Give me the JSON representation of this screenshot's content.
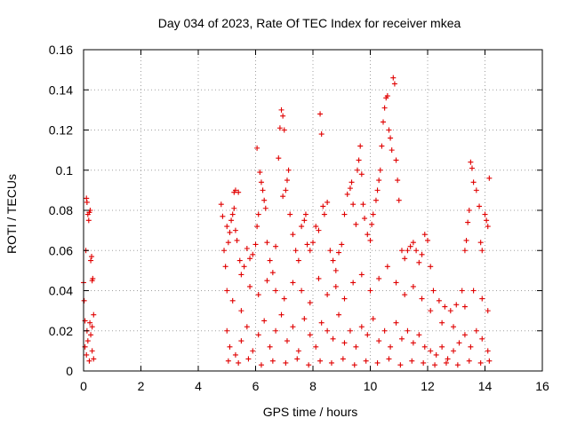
{
  "chart_data": {
    "type": "scatter",
    "title": "Day 034 of 2023, Rate Of TEC Index for receiver mkea",
    "xlabel": "GPS time / hours",
    "ylabel": "ROTI / TECUs",
    "xlim": [
      0,
      16
    ],
    "ylim": [
      0,
      0.16
    ],
    "xticks": [
      0,
      2,
      4,
      6,
      8,
      10,
      12,
      14,
      16
    ],
    "xtick_labels": [
      "0",
      "2",
      "4",
      "6",
      "8",
      "10",
      "12",
      "14",
      "16"
    ],
    "yticks": [
      0,
      0.02,
      0.04,
      0.06,
      0.08,
      0.1,
      0.12,
      0.14,
      0.16
    ],
    "ytick_labels": [
      "0",
      "0.02",
      "0.04",
      "0.06",
      "0.08",
      "0.1",
      "0.12",
      "0.14",
      "0.16"
    ],
    "grid": true,
    "marker": "plus",
    "color": "#e00000",
    "series": [
      {
        "name": "ROTI",
        "points": [
          [
            0.0,
            0.044
          ],
          [
            0.02,
            0.035
          ],
          [
            0.05,
            0.025
          ],
          [
            0.08,
            0.06
          ],
          [
            0.1,
            0.086
          ],
          [
            0.12,
            0.084
          ],
          [
            0.15,
            0.078
          ],
          [
            0.18,
            0.075
          ],
          [
            0.2,
            0.079
          ],
          [
            0.23,
            0.08
          ],
          [
            0.25,
            0.055
          ],
          [
            0.28,
            0.057
          ],
          [
            0.3,
            0.045
          ],
          [
            0.32,
            0.046
          ],
          [
            0.35,
            0.028
          ],
          [
            0.05,
            0.012
          ],
          [
            0.1,
            0.008
          ],
          [
            0.15,
            0.015
          ],
          [
            0.2,
            0.005
          ],
          [
            0.25,
            0.018
          ],
          [
            0.3,
            0.01
          ],
          [
            0.35,
            0.006
          ],
          [
            0.12,
            0.02
          ],
          [
            0.22,
            0.024
          ],
          [
            0.3,
            0.022
          ],
          [
            4.8,
            0.083
          ],
          [
            4.85,
            0.077
          ],
          [
            4.9,
            0.06
          ],
          [
            4.95,
            0.052
          ],
          [
            5.0,
            0.072
          ],
          [
            5.05,
            0.064
          ],
          [
            5.1,
            0.069
          ],
          [
            5.15,
            0.075
          ],
          [
            5.2,
            0.078
          ],
          [
            5.25,
            0.081
          ],
          [
            5.3,
            0.07
          ],
          [
            5.35,
            0.065
          ],
          [
            5.25,
            0.089
          ],
          [
            5.3,
            0.09
          ],
          [
            5.4,
            0.089
          ],
          [
            5.45,
            0.055
          ],
          [
            5.5,
            0.048
          ],
          [
            5.6,
            0.052
          ],
          [
            5.7,
            0.061
          ],
          [
            5.8,
            0.056
          ],
          [
            5.9,
            0.058
          ],
          [
            6.0,
            0.063
          ],
          [
            6.05,
            0.072
          ],
          [
            6.1,
            0.078
          ],
          [
            6.05,
            0.111
          ],
          [
            6.15,
            0.099
          ],
          [
            6.2,
            0.094
          ],
          [
            6.25,
            0.09
          ],
          [
            6.3,
            0.085
          ],
          [
            6.35,
            0.081
          ],
          [
            6.4,
            0.064
          ],
          [
            6.5,
            0.055
          ],
          [
            6.6,
            0.049
          ],
          [
            6.7,
            0.062
          ],
          [
            6.8,
            0.106
          ],
          [
            6.85,
            0.121
          ],
          [
            6.9,
            0.13
          ],
          [
            6.95,
            0.127
          ],
          [
            7.0,
            0.12
          ],
          [
            6.95,
            0.087
          ],
          [
            7.05,
            0.09
          ],
          [
            7.1,
            0.095
          ],
          [
            7.15,
            0.1
          ],
          [
            7.2,
            0.078
          ],
          [
            7.3,
            0.068
          ],
          [
            7.4,
            0.06
          ],
          [
            7.5,
            0.055
          ],
          [
            7.6,
            0.072
          ],
          [
            7.7,
            0.075
          ],
          [
            7.75,
            0.078
          ],
          [
            7.8,
            0.063
          ],
          [
            7.9,
            0.06
          ],
          [
            8.0,
            0.064
          ],
          [
            8.1,
            0.072
          ],
          [
            8.2,
            0.07
          ],
          [
            8.25,
            0.128
          ],
          [
            8.3,
            0.118
          ],
          [
            8.35,
            0.082
          ],
          [
            8.4,
            0.078
          ],
          [
            8.5,
            0.084
          ],
          [
            8.6,
            0.06
          ],
          [
            8.7,
            0.055
          ],
          [
            8.8,
            0.05
          ],
          [
            8.9,
            0.059
          ],
          [
            9.0,
            0.063
          ],
          [
            9.1,
            0.078
          ],
          [
            9.2,
            0.088
          ],
          [
            9.3,
            0.091
          ],
          [
            9.35,
            0.094
          ],
          [
            9.4,
            0.083
          ],
          [
            9.5,
            0.073
          ],
          [
            9.55,
            0.1
          ],
          [
            9.6,
            0.105
          ],
          [
            9.65,
            0.112
          ],
          [
            9.7,
            0.098
          ],
          [
            9.75,
            0.083
          ],
          [
            9.8,
            0.076
          ],
          [
            9.9,
            0.068
          ],
          [
            10.0,
            0.065
          ],
          [
            10.05,
            0.073
          ],
          [
            10.1,
            0.078
          ],
          [
            10.2,
            0.085
          ],
          [
            10.25,
            0.09
          ],
          [
            10.3,
            0.095
          ],
          [
            10.35,
            0.1
          ],
          [
            10.4,
            0.112
          ],
          [
            10.45,
            0.124
          ],
          [
            10.5,
            0.131
          ],
          [
            10.55,
            0.136
          ],
          [
            10.6,
            0.137
          ],
          [
            10.65,
            0.12
          ],
          [
            10.7,
            0.116
          ],
          [
            10.75,
            0.11
          ],
          [
            10.8,
            0.146
          ],
          [
            10.85,
            0.143
          ],
          [
            10.9,
            0.105
          ],
          [
            10.95,
            0.095
          ],
          [
            11.0,
            0.085
          ],
          [
            11.1,
            0.06
          ],
          [
            11.2,
            0.056
          ],
          [
            11.3,
            0.06
          ],
          [
            11.4,
            0.062
          ],
          [
            11.5,
            0.064
          ],
          [
            11.6,
            0.06
          ],
          [
            11.7,
            0.054
          ],
          [
            11.8,
            0.058
          ],
          [
            11.9,
            0.068
          ],
          [
            12.0,
            0.065
          ],
          [
            12.1,
            0.052
          ],
          [
            12.2,
            0.04
          ],
          [
            12.4,
            0.035
          ],
          [
            12.6,
            0.032
          ],
          [
            12.8,
            0.03
          ],
          [
            13.0,
            0.033
          ],
          [
            13.2,
            0.04
          ],
          [
            13.3,
            0.06
          ],
          [
            13.35,
            0.065
          ],
          [
            13.4,
            0.074
          ],
          [
            13.45,
            0.08
          ],
          [
            13.5,
            0.104
          ],
          [
            13.55,
            0.101
          ],
          [
            13.6,
            0.094
          ],
          [
            13.7,
            0.09
          ],
          [
            13.8,
            0.082
          ],
          [
            13.85,
            0.064
          ],
          [
            13.9,
            0.06
          ],
          [
            14.0,
            0.078
          ],
          [
            14.05,
            0.075
          ],
          [
            14.1,
            0.072
          ],
          [
            14.15,
            0.096
          ],
          [
            5.0,
            0.04
          ],
          [
            5.2,
            0.035
          ],
          [
            5.5,
            0.03
          ],
          [
            5.8,
            0.042
          ],
          [
            6.1,
            0.038
          ],
          [
            6.4,
            0.045
          ],
          [
            6.7,
            0.04
          ],
          [
            7.0,
            0.036
          ],
          [
            7.3,
            0.044
          ],
          [
            7.6,
            0.04
          ],
          [
            7.9,
            0.034
          ],
          [
            8.2,
            0.046
          ],
          [
            8.5,
            0.038
          ],
          [
            8.8,
            0.042
          ],
          [
            9.1,
            0.036
          ],
          [
            9.4,
            0.044
          ],
          [
            9.7,
            0.048
          ],
          [
            10.0,
            0.04
          ],
          [
            10.3,
            0.046
          ],
          [
            10.6,
            0.052
          ],
          [
            10.9,
            0.044
          ],
          [
            11.2,
            0.038
          ],
          [
            11.5,
            0.042
          ],
          [
            11.8,
            0.036
          ],
          [
            12.1,
            0.03
          ],
          [
            12.5,
            0.024
          ],
          [
            12.9,
            0.022
          ],
          [
            13.3,
            0.032
          ],
          [
            13.6,
            0.04
          ],
          [
            13.9,
            0.036
          ],
          [
            14.1,
            0.03
          ],
          [
            5.0,
            0.02
          ],
          [
            5.1,
            0.012
          ],
          [
            5.3,
            0.008
          ],
          [
            5.5,
            0.015
          ],
          [
            5.7,
            0.022
          ],
          [
            5.9,
            0.01
          ],
          [
            6.1,
            0.018
          ],
          [
            6.3,
            0.025
          ],
          [
            6.5,
            0.012
          ],
          [
            6.7,
            0.02
          ],
          [
            6.9,
            0.028
          ],
          [
            7.1,
            0.015
          ],
          [
            7.3,
            0.022
          ],
          [
            7.5,
            0.01
          ],
          [
            7.7,
            0.026
          ],
          [
            7.9,
            0.018
          ],
          [
            8.1,
            0.012
          ],
          [
            8.3,
            0.024
          ],
          [
            8.5,
            0.02
          ],
          [
            8.7,
            0.016
          ],
          [
            8.9,
            0.028
          ],
          [
            9.1,
            0.014
          ],
          [
            9.3,
            0.02
          ],
          [
            9.5,
            0.012
          ],
          [
            9.7,
            0.022
          ],
          [
            9.9,
            0.018
          ],
          [
            10.1,
            0.026
          ],
          [
            10.3,
            0.015
          ],
          [
            10.5,
            0.02
          ],
          [
            10.7,
            0.012
          ],
          [
            10.9,
            0.024
          ],
          [
            11.1,
            0.016
          ],
          [
            11.3,
            0.02
          ],
          [
            11.5,
            0.014
          ],
          [
            11.7,
            0.018
          ],
          [
            11.9,
            0.012
          ],
          [
            12.1,
            0.01
          ],
          [
            12.3,
            0.008
          ],
          [
            12.5,
            0.012
          ],
          [
            12.7,
            0.006
          ],
          [
            12.9,
            0.01
          ],
          [
            13.1,
            0.014
          ],
          [
            13.3,
            0.018
          ],
          [
            13.5,
            0.012
          ],
          [
            13.7,
            0.02
          ],
          [
            13.9,
            0.016
          ],
          [
            14.1,
            0.01
          ],
          [
            5.05,
            0.005
          ],
          [
            5.4,
            0.004
          ],
          [
            5.75,
            0.006
          ],
          [
            6.2,
            0.003
          ],
          [
            6.6,
            0.005
          ],
          [
            7.05,
            0.004
          ],
          [
            7.45,
            0.006
          ],
          [
            7.85,
            0.003
          ],
          [
            8.25,
            0.005
          ],
          [
            8.65,
            0.004
          ],
          [
            9.05,
            0.006
          ],
          [
            9.45,
            0.003
          ],
          [
            9.85,
            0.005
          ],
          [
            10.25,
            0.004
          ],
          [
            10.65,
            0.006
          ],
          [
            11.05,
            0.003
          ],
          [
            11.45,
            0.005
          ],
          [
            11.85,
            0.004
          ],
          [
            12.25,
            0.003
          ],
          [
            12.65,
            0.004
          ],
          [
            13.05,
            0.003
          ],
          [
            13.45,
            0.005
          ],
          [
            13.85,
            0.004
          ],
          [
            14.15,
            0.005
          ]
        ]
      }
    ]
  }
}
